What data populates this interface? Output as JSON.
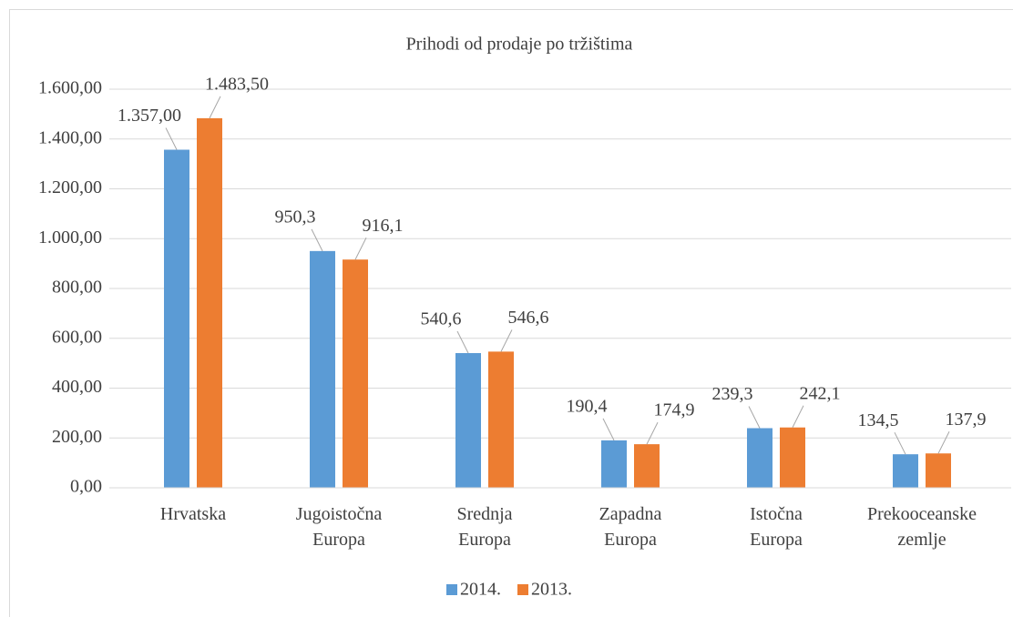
{
  "chart_data": {
    "type": "bar",
    "title": "Prihodi od prodaje po tržištima",
    "categories": [
      "Hrvatska",
      "Jugoistočna Europa",
      "Srednja Europa",
      "Zapadna Europa",
      "Istočna Europa",
      "Prekooceanske zemlje"
    ],
    "series": [
      {
        "name": "2014.",
        "color": "#5b9bd5",
        "values": [
          1357,
          950.3,
          540.6,
          190.4,
          239.3,
          134.5
        ],
        "value_labels": [
          "1.357,00",
          "950,3",
          "540,6",
          "190,4",
          "239,3",
          "134,5"
        ]
      },
      {
        "name": "2013.",
        "color": "#ed7d31",
        "values": [
          1483.5,
          916.1,
          546.6,
          174.9,
          242.1,
          137.9
        ],
        "value_labels": [
          "1.483,50",
          "916,1",
          "546,6",
          "174,9",
          "242,1",
          "137,9"
        ]
      }
    ],
    "ylim": [
      0,
      1600
    ],
    "yticks": [
      {
        "value": 0,
        "label": "0,00"
      },
      {
        "value": 200,
        "label": "200,00"
      },
      {
        "value": 400,
        "label": "400,00"
      },
      {
        "value": 600,
        "label": "600,00"
      },
      {
        "value": 800,
        "label": "800,00"
      },
      {
        "value": 1000,
        "label": "1.000,00"
      },
      {
        "value": 1200,
        "label": "1.200,00"
      },
      {
        "value": 1400,
        "label": "1.400,00"
      },
      {
        "value": 1600,
        "label": "1.600,00"
      }
    ],
    "grid": true,
    "legend": "bottom"
  }
}
